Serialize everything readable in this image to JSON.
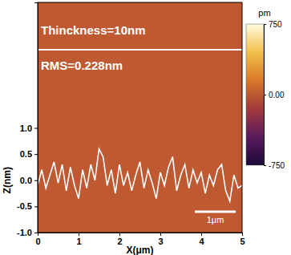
{
  "chart_data": {
    "type": "line",
    "annotations": [
      "Thinckness=10nm",
      "RMS=0.228nm"
    ],
    "x_label": "X(μm)",
    "y_label": "Z(nm)",
    "x": [
      0.0,
      0.1,
      0.2,
      0.3,
      0.4,
      0.5,
      0.6,
      0.7,
      0.8,
      0.9,
      1.0,
      1.1,
      1.2,
      1.3,
      1.4,
      1.5,
      1.6,
      1.7,
      1.8,
      1.9,
      2.0,
      2.1,
      2.2,
      2.3,
      2.4,
      2.5,
      2.6,
      2.7,
      2.8,
      2.9,
      3.0,
      3.1,
      3.2,
      3.3,
      3.4,
      3.5,
      3.6,
      3.7,
      3.8,
      3.9,
      4.0,
      4.1,
      4.2,
      4.3,
      4.4,
      4.5,
      4.6,
      4.7,
      4.8,
      4.9,
      5.0
    ],
    "series": [
      {
        "name": "Z",
        "color": "#ffffff",
        "values": [
          -0.1,
          0.2,
          -0.15,
          0.1,
          0.35,
          -0.05,
          0.3,
          -0.2,
          0.25,
          -0.1,
          -0.35,
          0.2,
          -0.15,
          0.3,
          0.0,
          0.6,
          0.45,
          -0.1,
          0.2,
          -0.25,
          0.3,
          -0.1,
          0.15,
          -0.2,
          0.1,
          0.35,
          -0.15,
          0.2,
          -0.05,
          -0.35,
          0.15,
          -0.1,
          0.25,
          0.45,
          -0.2,
          0.1,
          0.3,
          -0.15,
          0.2,
          -0.05,
          0.15,
          -0.25,
          0.1,
          -0.1,
          0.2,
          0.3,
          -0.2,
          -0.4,
          0.1,
          -0.15,
          -0.1
        ]
      }
    ],
    "xlim": [
      0,
      5
    ],
    "xticks": [
      0,
      1,
      2,
      3,
      4,
      5
    ],
    "ylim": [
      -1.0,
      3.4
    ],
    "yticks": [
      {
        "value": -1.0,
        "label": "-1.0"
      },
      {
        "value": -0.5,
        "label": "-0.5"
      },
      {
        "value": 0.0,
        "label": "0.0"
      },
      {
        "value": 0.5,
        "label": "0.5"
      },
      {
        "value": 1.0,
        "label": "1.0"
      }
    ],
    "scale_bar": {
      "length": 1,
      "label": "1μm"
    },
    "colorbar": {
      "range": [
        -750,
        750
      ],
      "ticks": [
        750,
        {
          "value": 0,
          "label": "0.00"
        },
        -750
      ],
      "label": "pm",
      "colors": [
        "#1a0838",
        "#5a1a5e",
        "#a33a3a",
        "#d8782a",
        "#f2c04a",
        "#fffbe0"
      ]
    }
  }
}
